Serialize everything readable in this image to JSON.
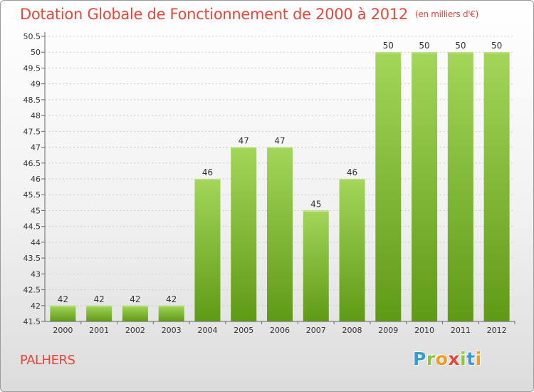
{
  "title": "Dotation Globale de Fonctionnement de 2000 à 2012",
  "unit_label": "(en milliers d'€)",
  "place_name": "PALHERS",
  "logo": {
    "letters": [
      "P",
      "r",
      "o",
      "x",
      "i",
      "t",
      "i"
    ],
    "colors": [
      "#3d9ad1",
      "#8bc63f",
      "#f39a1f",
      "#e8463a",
      "#8bc63f",
      "#3d9ad1",
      "#f39a1f"
    ]
  },
  "colors": {
    "bar_top": "#a3d65a",
    "bar_bottom": "#5f9a16",
    "grid": "#cccccc",
    "axis": "#666666"
  },
  "chart_data": {
    "type": "bar",
    "categories": [
      "2000",
      "2001",
      "2002",
      "2003",
      "2004",
      "2005",
      "2006",
      "2007",
      "2008",
      "2009",
      "2010",
      "2011",
      "2012"
    ],
    "values": [
      42,
      42,
      42,
      42,
      46,
      47,
      47,
      45,
      46,
      50,
      50,
      50,
      50
    ],
    "ylim": [
      41.5,
      50.5
    ],
    "yticks": [
      "41.5",
      "42",
      "42.5",
      "43",
      "43.5",
      "44",
      "44.5",
      "45",
      "45.5",
      "46",
      "46.5",
      "47",
      "47.5",
      "48",
      "48.5",
      "49",
      "49.5",
      "50",
      "50.5"
    ],
    "title": "Dotation Globale de Fonctionnement de 2000 à 2012",
    "xlabel": "",
    "ylabel": "",
    "grid": true,
    "data_labels": true
  }
}
